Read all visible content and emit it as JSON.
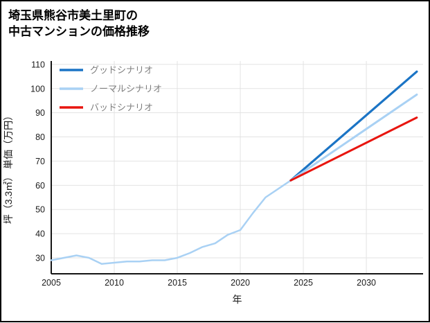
{
  "page": {
    "title_line1": "埼玉県熊谷市美土里町の",
    "title_line2": "中古マンションの価格推移"
  },
  "chart_data": {
    "type": "line",
    "title": "埼玉県熊谷市美土里町の中古マンションの価格推移",
    "xlabel": "年",
    "ylabel": "坪（3.3㎡） 単価（万円）",
    "xlim": [
      2005,
      2034.5
    ],
    "ylim": [
      23.4,
      111.4
    ],
    "xticks": [
      2005,
      2010,
      2015,
      2020,
      2025,
      2030
    ],
    "yticks": [
      30,
      40,
      50,
      60,
      70,
      80,
      90,
      100,
      110
    ],
    "grid": true,
    "legend_position": "top-left",
    "legend": [
      {
        "id": "good",
        "label": "グッドシナリオ",
        "color": "#1b74c5"
      },
      {
        "id": "normal",
        "label": "ノーマルシナリオ",
        "color": "#a9d1f4"
      },
      {
        "id": "bad",
        "label": "バッドシナリオ",
        "color": "#e8150f"
      }
    ],
    "series": [
      {
        "id": "history",
        "color": "#a9d1f4",
        "width": 2.5,
        "x": [
          2005,
          2006,
          2007,
          2008,
          2009,
          2010,
          2011,
          2012,
          2013,
          2014,
          2015,
          2016,
          2017,
          2018,
          2019,
          2020,
          2021,
          2022,
          2023,
          2024
        ],
        "y": [
          29,
          30,
          31,
          30,
          27.5,
          28,
          28.5,
          28.5,
          29,
          29,
          30,
          32,
          34.5,
          36,
          39.5,
          41.5,
          48.5,
          55,
          58.5,
          62
        ]
      },
      {
        "id": "good",
        "color": "#1b74c5",
        "width": 3.2,
        "x": [
          2024,
          2034
        ],
        "y": [
          62,
          107
        ]
      },
      {
        "id": "normal",
        "color": "#a9d1f4",
        "width": 3.0,
        "x": [
          2024,
          2034
        ],
        "y": [
          62,
          97.5
        ]
      },
      {
        "id": "bad",
        "color": "#e8150f",
        "width": 3.0,
        "x": [
          2024,
          2034
        ],
        "y": [
          62,
          88
        ]
      }
    ]
  }
}
